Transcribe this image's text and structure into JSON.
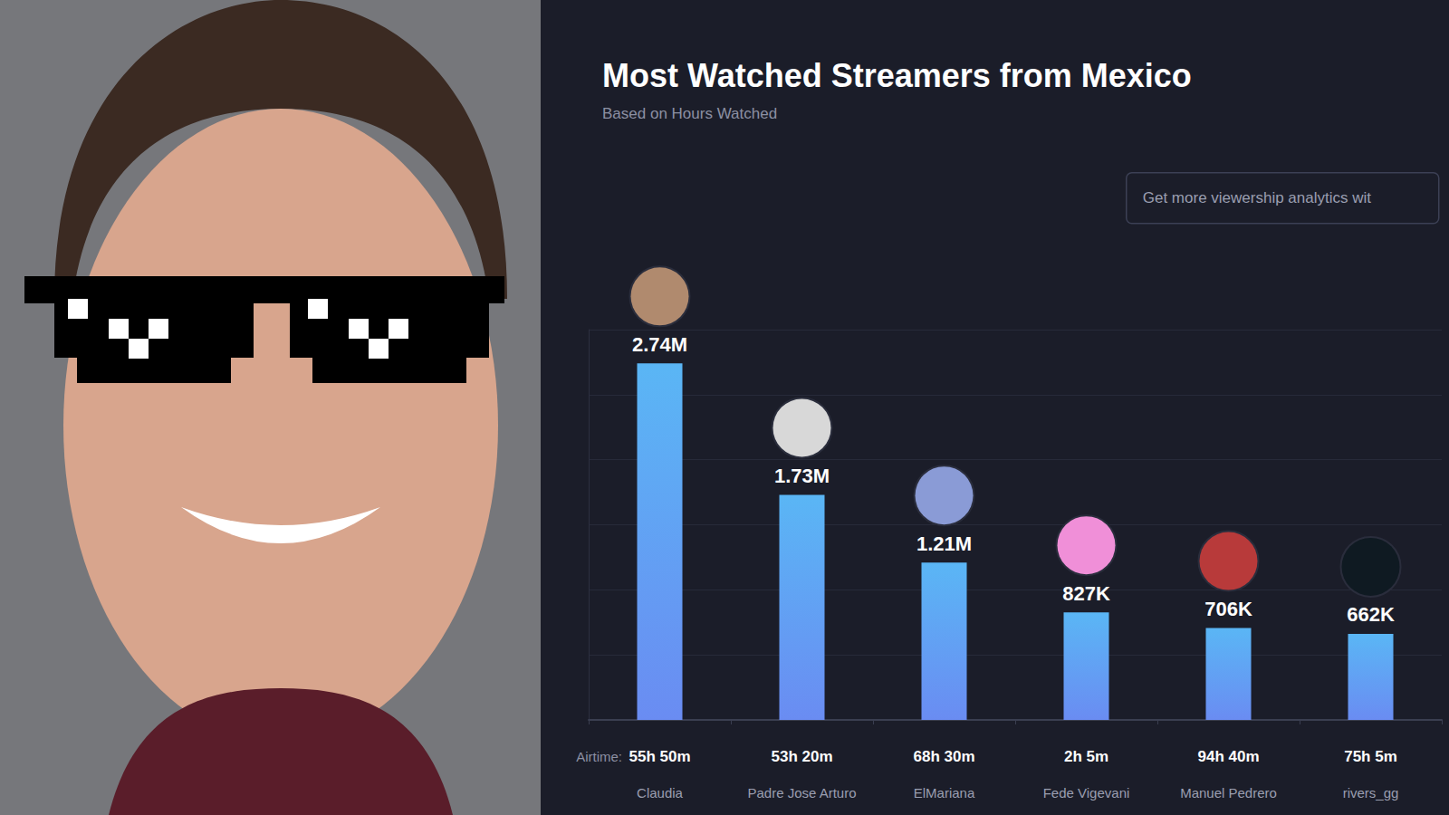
{
  "chart_data": {
    "type": "bar",
    "title": "Most Watched Streamers from Mexico",
    "subtitle": "Based on Hours Watched",
    "annotation": "Get more viewership analytics wit",
    "categories": [
      "Claudia",
      "Padre Jose Arturo",
      "ElMariana",
      "Fede Vigevani",
      "Manuel Pedrero",
      "rivers_gg"
    ],
    "values": [
      2740000,
      1730000,
      1210000,
      827000,
      706000,
      662000
    ],
    "value_labels": [
      "2.74M",
      "1.73M",
      "1.21M",
      "827K",
      "706K",
      "662K"
    ],
    "airtime_label": "Airtime:",
    "airtime": [
      "55h 50m",
      "53h 20m",
      "68h 30m",
      "2h 5m",
      "94h 40m",
      "75h 5m"
    ],
    "color": "#5ab6f5",
    "ylim": [
      0,
      3000000
    ],
    "yticks": [
      0,
      500000,
      1000000,
      1500000,
      2000000,
      2500000,
      3000000
    ],
    "grid": true,
    "data_labels": true,
    "tick_labels": "x"
  }
}
